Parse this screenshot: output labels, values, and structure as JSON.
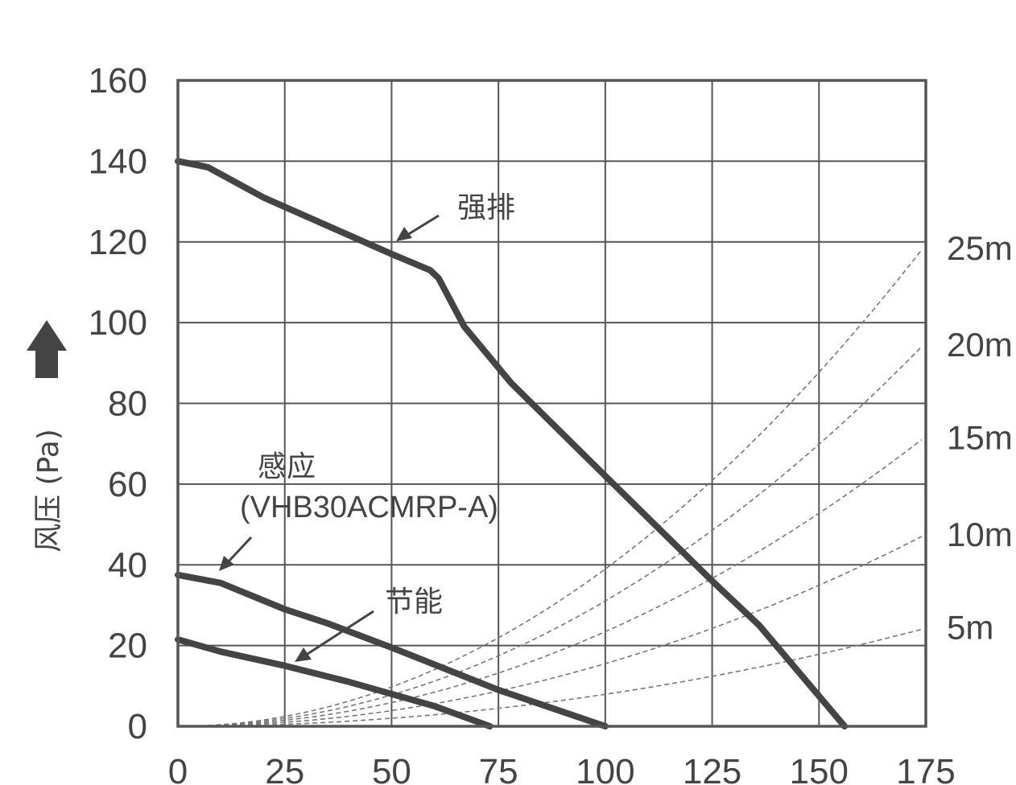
{
  "chart_data": {
    "type": "line",
    "ylabel": "风压 (Pa)",
    "xlabel": "",
    "xlim": [
      0,
      175
    ],
    "ylim": [
      0,
      160
    ],
    "x_ticks": [
      "0",
      "25",
      "50",
      "75",
      "100",
      "125",
      "150",
      "175"
    ],
    "y_ticks": [
      "0",
      "20",
      "40",
      "60",
      "80",
      "100",
      "120",
      "140",
      "160"
    ],
    "grid": true,
    "series": [
      {
        "name": "强排",
        "x": [
          0,
          7,
          20,
          35,
          50,
          59,
          61,
          67,
          78,
          100,
          125,
          136,
          156
        ],
        "y": [
          140,
          138.5,
          131,
          124,
          117,
          113,
          111,
          99,
          85,
          62,
          36,
          25,
          0
        ]
      },
      {
        "name": "感应 (VHB30ACMRP-A)",
        "x": [
          0,
          10,
          25,
          35,
          50,
          75,
          100
        ],
        "y": [
          37.5,
          35.5,
          29,
          25.5,
          19.5,
          9,
          0
        ]
      },
      {
        "name": "节能",
        "x": [
          0,
          10,
          25,
          40,
          60,
          73
        ],
        "y": [
          21.5,
          18.5,
          15,
          11,
          5,
          0
        ]
      }
    ],
    "reference_curves": {
      "style": "dashed",
      "shape": "quadratic",
      "x_start": 7,
      "x_end": 174,
      "labels": [
        "25m",
        "20m",
        "15m",
        "10m",
        "5m"
      ],
      "y_at_x_end": [
        118,
        94,
        71,
        47,
        24
      ]
    },
    "annotations": {
      "strong": "强排",
      "sensor_line1": "感应",
      "sensor_line2": "(VHB30ACMRP-A)",
      "eco": "节能"
    }
  }
}
